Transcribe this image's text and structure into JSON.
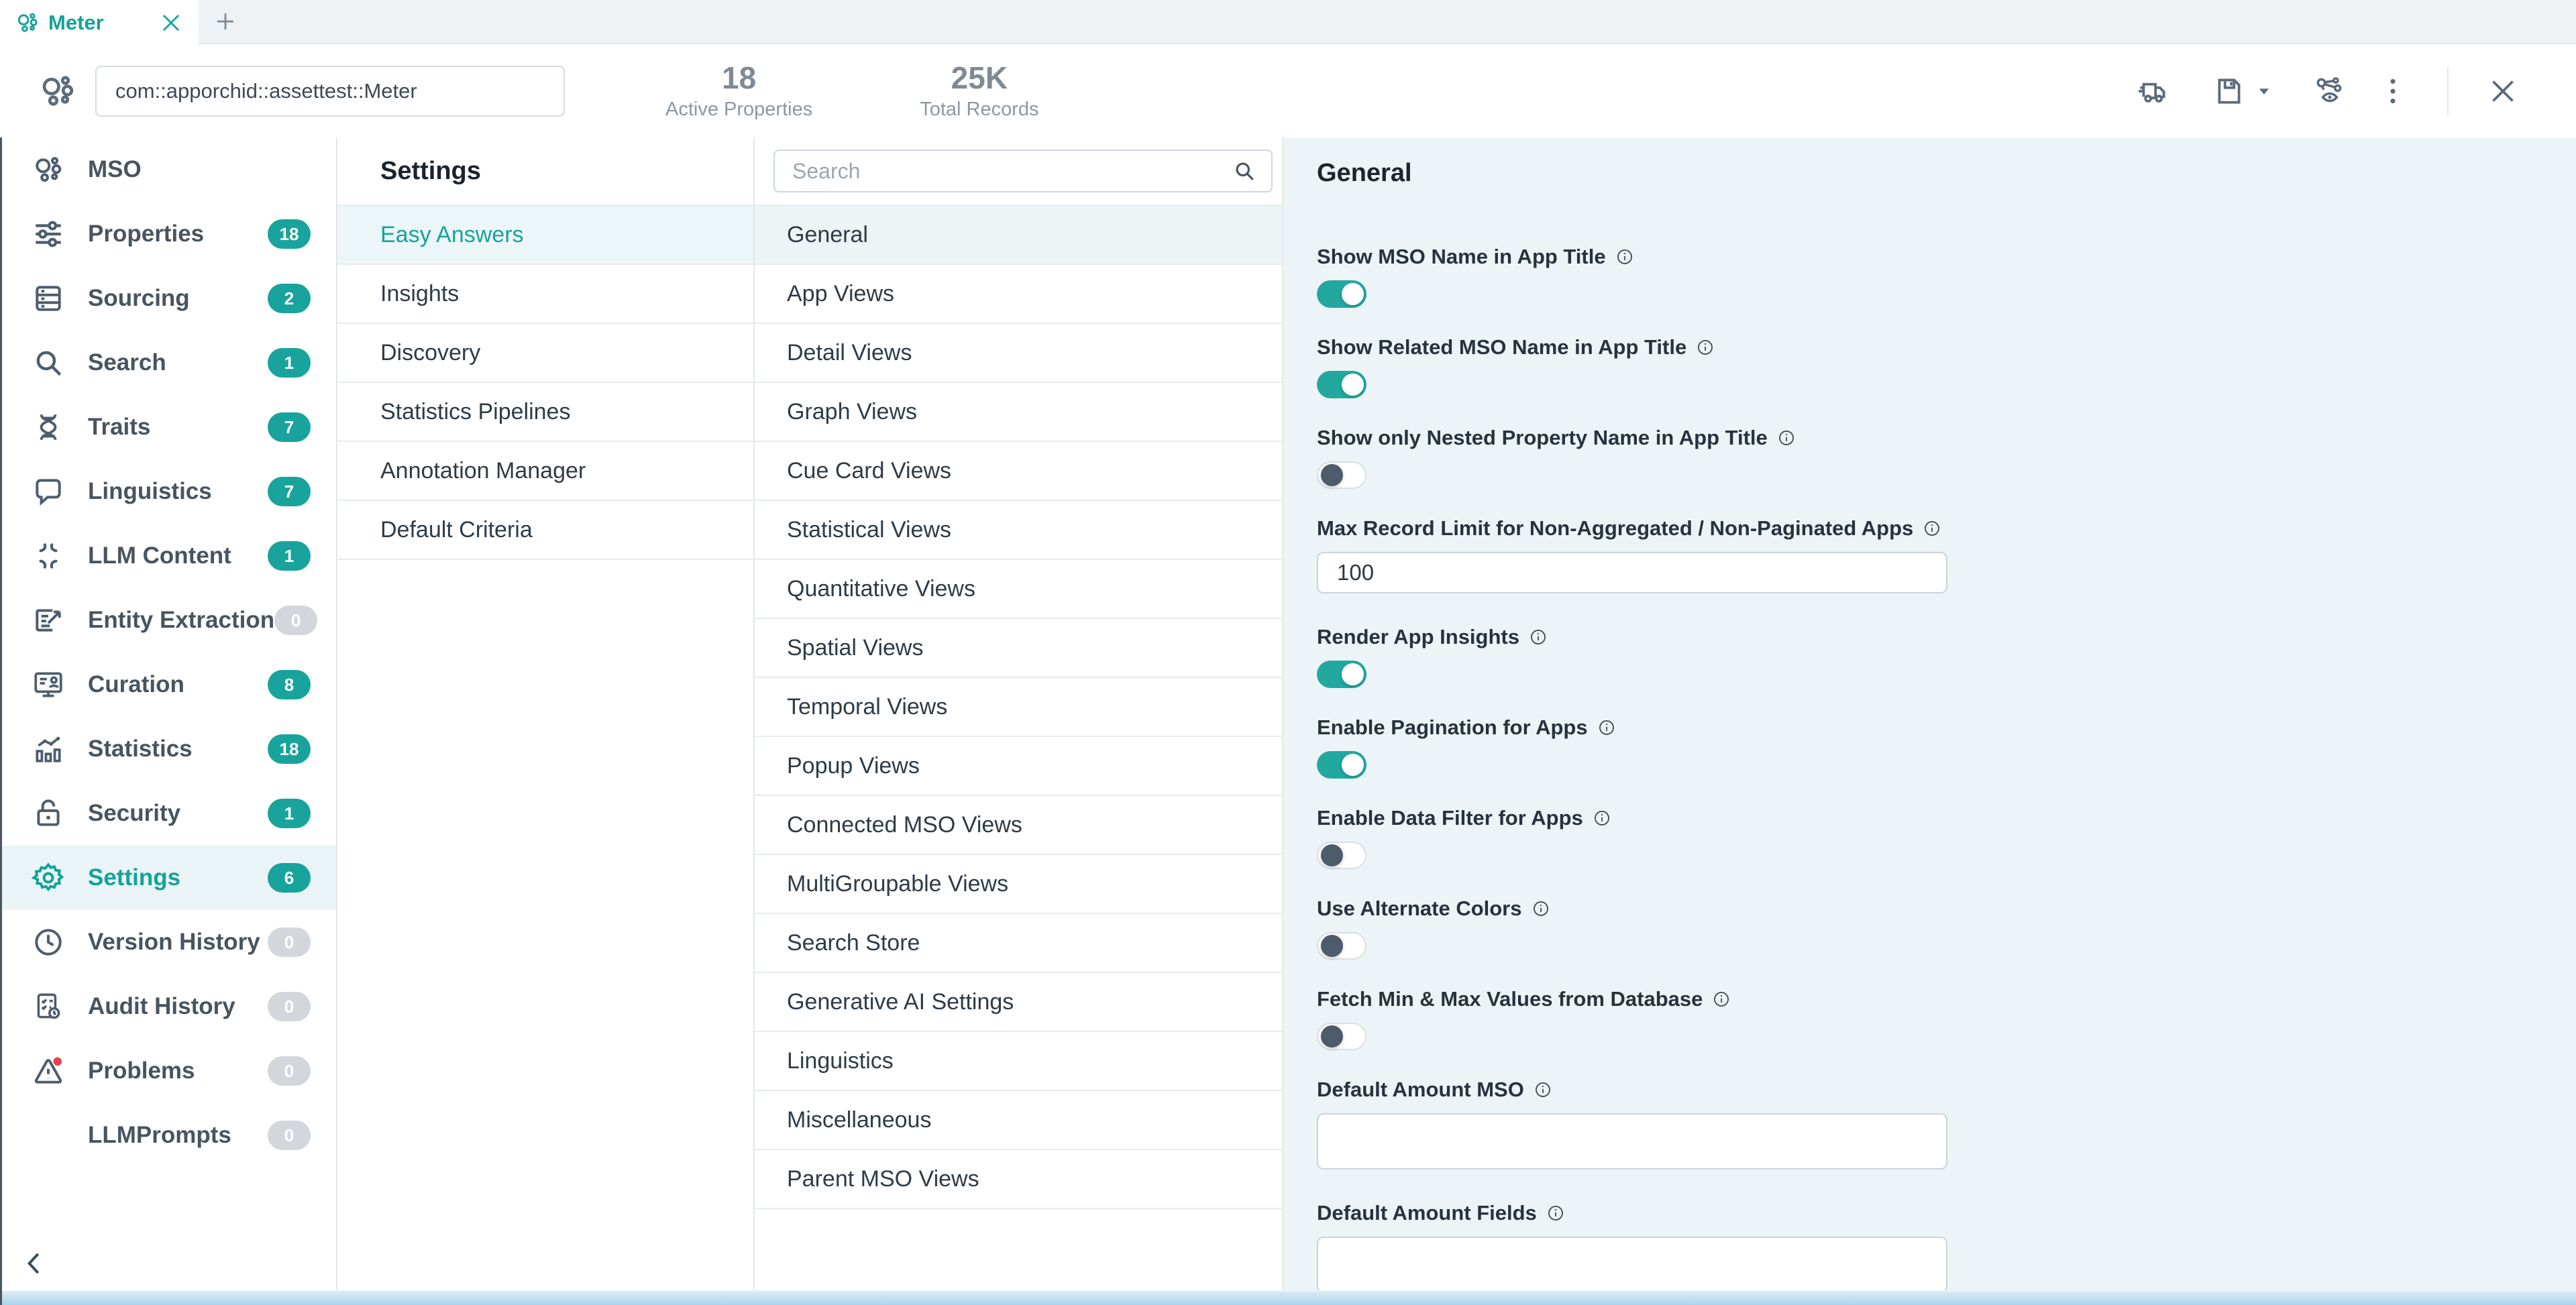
{
  "tab": {
    "title": "Meter"
  },
  "header": {
    "mso_id": "com::apporchid::assettest::Meter",
    "stats": [
      {
        "value": "18",
        "label": "Active Properties"
      },
      {
        "value": "25K",
        "label": "Total Records"
      }
    ],
    "toolbar_icons": [
      "publish-truck-icon",
      "save-icon",
      "caret-down-icon",
      "preview-graph-eye-icon",
      "more-menu-kebab-icon",
      "close-icon"
    ]
  },
  "sidebar": {
    "items": [
      {
        "label": "MSO",
        "icon": "mso-icon"
      },
      {
        "label": "Properties",
        "icon": "properties-icon",
        "badge": "18",
        "variant": "teal"
      },
      {
        "label": "Sourcing",
        "icon": "sourcing-icon",
        "badge": "2",
        "variant": "teal"
      },
      {
        "label": "Search",
        "icon": "search-icon",
        "badge": "1",
        "variant": "teal"
      },
      {
        "label": "Traits",
        "icon": "traits-icon",
        "badge": "7",
        "variant": "teal"
      },
      {
        "label": "Linguistics",
        "icon": "linguistics-icon",
        "badge": "7",
        "variant": "teal"
      },
      {
        "label": "LLM Content",
        "icon": "llm-content-icon",
        "badge": "1",
        "variant": "teal"
      },
      {
        "label": "Entity Extraction",
        "icon": "entity-extraction-icon",
        "badge": "0",
        "variant": "gray"
      },
      {
        "label": "Curation",
        "icon": "curation-icon",
        "badge": "8",
        "variant": "teal"
      },
      {
        "label": "Statistics",
        "icon": "statistics-icon",
        "badge": "18",
        "variant": "teal"
      },
      {
        "label": "Security",
        "icon": "security-icon",
        "badge": "1",
        "variant": "teal"
      },
      {
        "label": "Settings",
        "icon": "settings-icon",
        "badge": "6",
        "variant": "teal",
        "selected": true
      },
      {
        "label": "Version History",
        "icon": "version-history-icon",
        "badge": "0",
        "variant": "gray"
      },
      {
        "label": "Audit History",
        "icon": "audit-history-icon",
        "badge": "0",
        "variant": "gray"
      },
      {
        "label": "Problems",
        "icon": "problems-icon",
        "badge": "0",
        "variant": "gray"
      },
      {
        "label": "LLMPrompts",
        "badge": "0",
        "variant": "gray"
      }
    ]
  },
  "settings_nav": {
    "title": "Settings",
    "items": [
      {
        "label": "Easy Answers",
        "selected": true
      },
      {
        "label": "Insights"
      },
      {
        "label": "Discovery"
      },
      {
        "label": "Statistics Pipelines"
      },
      {
        "label": "Annotation Manager"
      },
      {
        "label": "Default Criteria"
      }
    ]
  },
  "views_nav": {
    "search_placeholder": "Search",
    "items": [
      {
        "label": "General",
        "selected": true
      },
      {
        "label": "App Views"
      },
      {
        "label": "Detail Views"
      },
      {
        "label": "Graph Views"
      },
      {
        "label": "Cue Card Views"
      },
      {
        "label": "Statistical Views"
      },
      {
        "label": "Quantitative Views"
      },
      {
        "label": "Spatial Views"
      },
      {
        "label": "Temporal Views"
      },
      {
        "label": "Popup Views"
      },
      {
        "label": "Connected MSO Views"
      },
      {
        "label": "MultiGroupable Views"
      },
      {
        "label": "Search Store"
      },
      {
        "label": "Generative AI Settings"
      },
      {
        "label": "Linguistics"
      },
      {
        "label": "Miscellaneous"
      },
      {
        "label": "Parent MSO Views"
      }
    ]
  },
  "detail": {
    "title": "General",
    "controls": [
      {
        "type": "toggle",
        "label": "Show MSO Name in App Title",
        "on": true
      },
      {
        "type": "toggle",
        "label": "Show Related MSO Name in App Title",
        "on": true
      },
      {
        "type": "toggle",
        "label": "Show only Nested Property Name in App Title",
        "on": false
      },
      {
        "type": "input",
        "label": "Max Record Limit for Non-Aggregated / Non-Paginated Apps",
        "value": "100"
      },
      {
        "type": "toggle",
        "label": "Render App Insights",
        "on": true
      },
      {
        "type": "toggle",
        "label": "Enable Pagination for Apps",
        "on": true
      },
      {
        "type": "toggle",
        "label": "Enable Data Filter for Apps",
        "on": false
      },
      {
        "type": "toggle",
        "label": "Use Alternate Colors",
        "on": false
      },
      {
        "type": "toggle",
        "label": "Fetch Min & Max Values from Database",
        "on": false
      },
      {
        "type": "input",
        "label": "Default Amount MSO",
        "value": "",
        "tall": true
      },
      {
        "type": "input",
        "label": "Default Amount Fields",
        "value": "",
        "tall": true
      }
    ]
  },
  "colors": {
    "accent": "#18a39b",
    "badge_gray": "#d3d7db",
    "detail_panel_bg": "#edf4f7",
    "alert_red": "#e8414d",
    "scrollbar_blue": "#aed4ea"
  }
}
